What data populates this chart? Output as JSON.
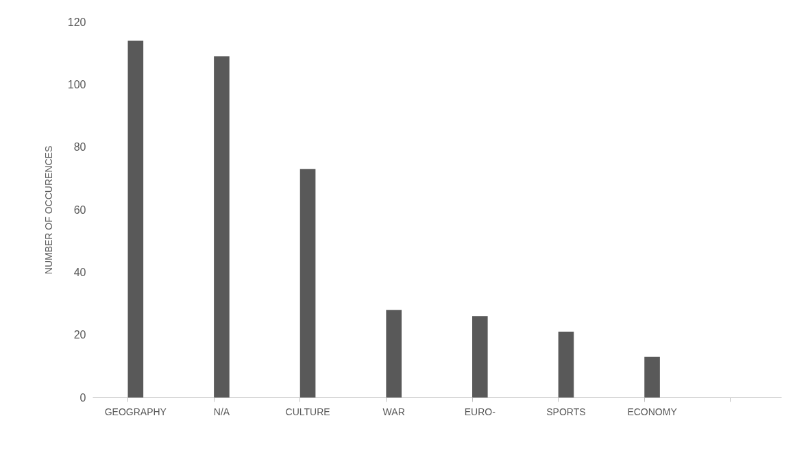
{
  "chart_data": {
    "type": "bar",
    "ylabel": "NUMBER OF OCCURENCES",
    "categories": [
      "GEOGRAPHY",
      "N/A",
      "CULTURE",
      "WAR",
      "EURO-",
      "SPORTS",
      "ECONOMY",
      null
    ],
    "values": [
      114,
      109,
      73,
      28,
      26,
      21,
      13,
      null
    ],
    "color": "#595959",
    "ylim": [
      0,
      120
    ],
    "yticks": [
      0,
      20,
      40,
      60,
      80,
      100,
      120
    ],
    "grid": false
  }
}
